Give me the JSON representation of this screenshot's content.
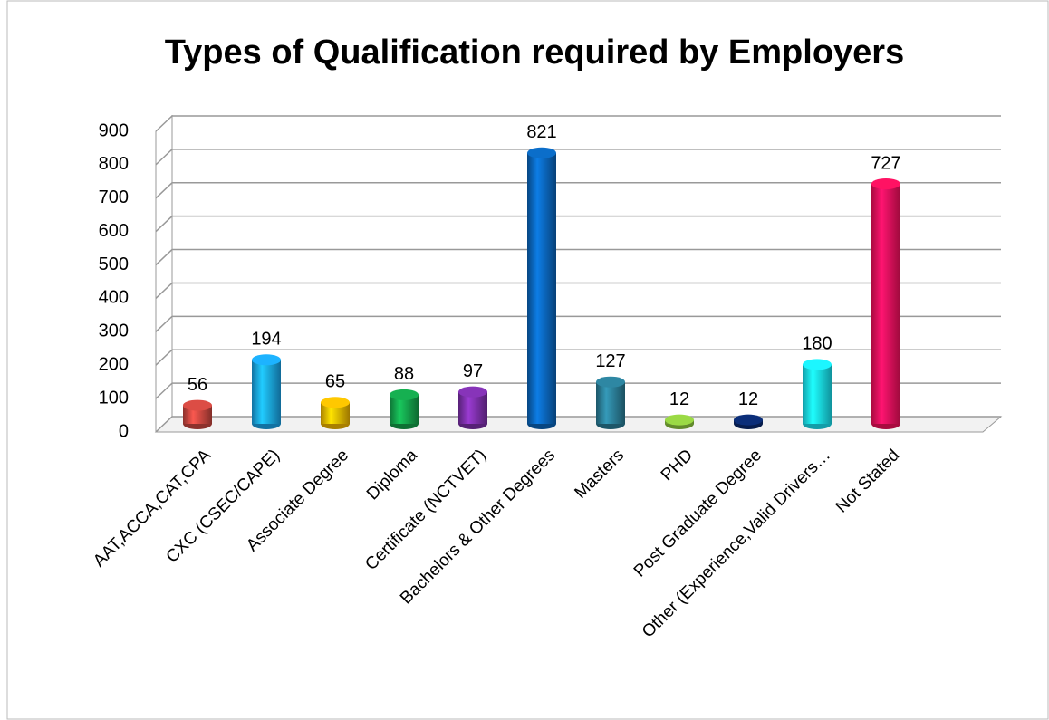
{
  "chart_data": {
    "type": "bar",
    "title": "Types of Qualification required by Employers",
    "categories": [
      "AAT,ACCA,CAT,CPA",
      "CXC (CSEC/CAPE)",
      "Associate Degree",
      "Diploma",
      "Certificate (NCTVET)",
      "Bachelors & Other Degrees",
      "Masters",
      "PHD",
      "Post Graduate Degree",
      "Other (Experience,Valid Drivers…",
      "Not Stated"
    ],
    "values": [
      56,
      194,
      65,
      88,
      97,
      821,
      127,
      12,
      12,
      180,
      727
    ],
    "colors": [
      "#c8463f",
      "#1aa3e8",
      "#f2b600",
      "#14a04a",
      "#7b2fa8",
      "#0a64b8",
      "#2a7b94",
      "#8dc63f",
      "#0a2a6e",
      "#19e0f0",
      "#f0105a"
    ],
    "ylim": [
      0,
      900
    ],
    "yticks": [
      0,
      100,
      200,
      300,
      400,
      500,
      600,
      700,
      800,
      900
    ],
    "grid": true
  }
}
